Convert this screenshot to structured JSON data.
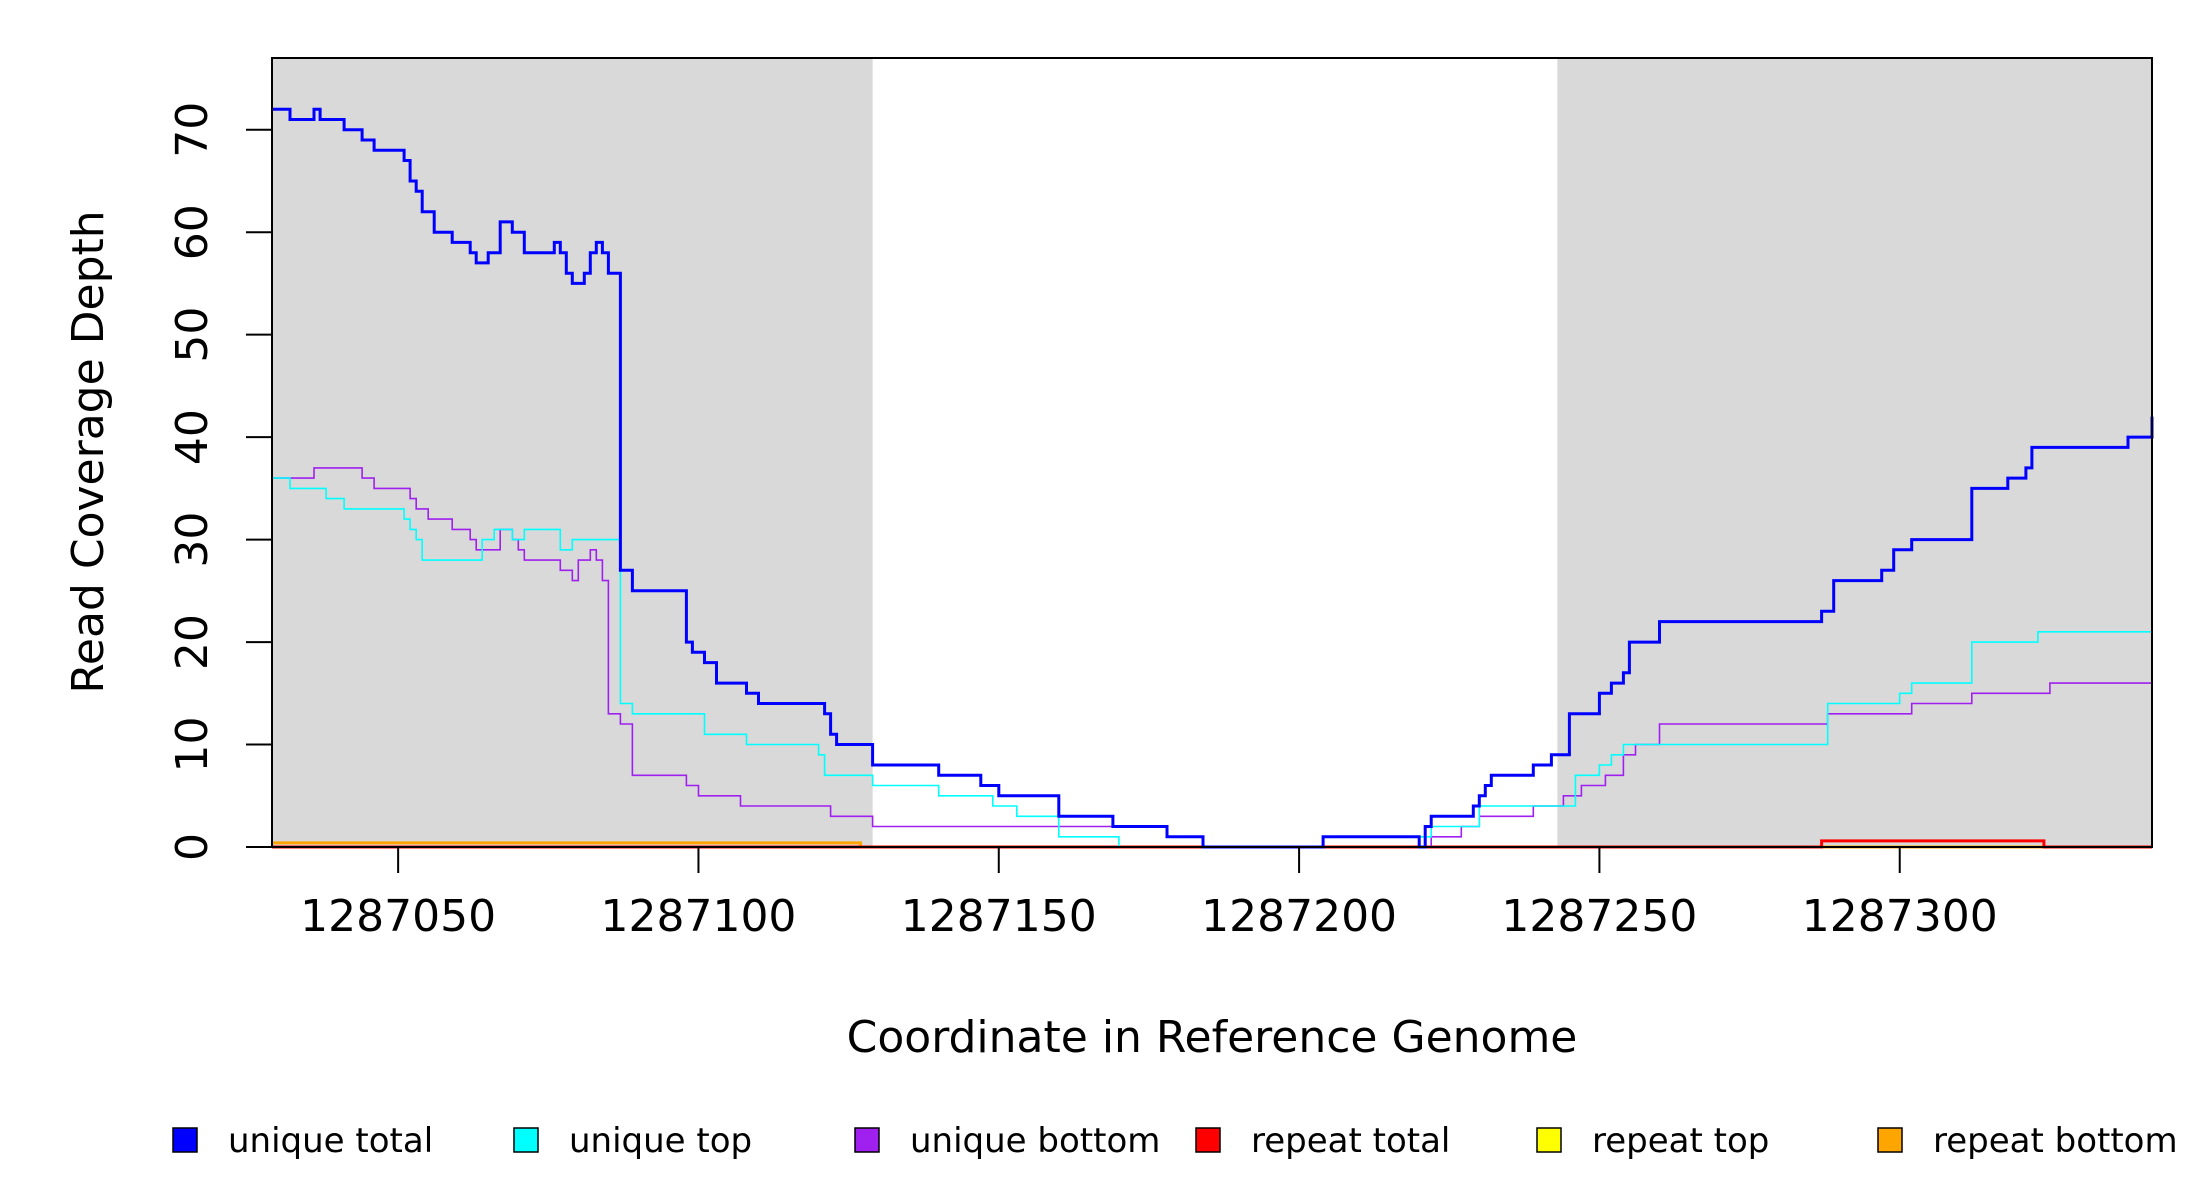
{
  "chart_data": {
    "type": "line",
    "line_style": "step",
    "title": "",
    "xlabel": "Coordinate in Reference Genome",
    "ylabel": "Read Coverage Depth",
    "xlim": [
      1287029,
      1287342
    ],
    "ylim": [
      0,
      77
    ],
    "xticks": [
      1287050,
      1287100,
      1287150,
      1287200,
      1287250,
      1287300
    ],
    "yticks": [
      0,
      10,
      20,
      30,
      40,
      50,
      60,
      70
    ],
    "shaded_regions": [
      {
        "x_start": 1287029,
        "x_end": 1287129,
        "color": "#d9d9d9"
      },
      {
        "x_start": 1287243,
        "x_end": 1287342,
        "color": "#d9d9d9"
      }
    ],
    "legend_placement": "bottom",
    "series": [
      {
        "name": "unique total",
        "color": "#0000ff",
        "width": 3,
        "x": [
          1287029,
          1287032,
          1287036,
          1287037,
          1287041,
          1287044,
          1287046,
          1287051,
          1287052,
          1287053,
          1287054,
          1287056,
          1287059,
          1287062,
          1287063,
          1287065,
          1287067,
          1287069,
          1287071,
          1287076,
          1287077,
          1287078,
          1287079,
          1287081,
          1287082,
          1287083,
          1287084,
          1287085,
          1287087,
          1287089,
          1287098,
          1287099,
          1287101,
          1287103,
          1287108,
          1287110,
          1287121,
          1287122,
          1287123,
          1287129,
          1287140,
          1287147,
          1287150,
          1287160,
          1287169,
          1287178,
          1287184,
          1287204,
          1287220,
          1287221,
          1287222,
          1287223,
          1287229,
          1287230,
          1287231,
          1287232,
          1287234,
          1287239,
          1287242,
          1287245,
          1287250,
          1287252,
          1287254,
          1287255,
          1287256,
          1287260,
          1287271,
          1287280,
          1287287,
          1287289,
          1287297,
          1287299,
          1287302,
          1287312,
          1287318,
          1287320,
          1287321,
          1287322,
          1287338,
          1287342
        ],
        "y": [
          72,
          71,
          72,
          71,
          70,
          69,
          68,
          67,
          65,
          64,
          62,
          60,
          59,
          58,
          57,
          58,
          61,
          60,
          58,
          59,
          58,
          56,
          55,
          56,
          58,
          59,
          58,
          56,
          27,
          25,
          20,
          19,
          18,
          16,
          15,
          14,
          13,
          11,
          10,
          8,
          7,
          6,
          5,
          3,
          2,
          1,
          0,
          1,
          0,
          2,
          3,
          3,
          4,
          5,
          6,
          7,
          7,
          8,
          9,
          13,
          15,
          16,
          17,
          20,
          20,
          22,
          22,
          22,
          23,
          26,
          27,
          29,
          30,
          35,
          36,
          36,
          37,
          39,
          40,
          42
        ]
      },
      {
        "name": "unique top",
        "color": "#00ffff",
        "width": 1.6,
        "x": [
          1287029,
          1287032,
          1287038,
          1287041,
          1287051,
          1287052,
          1287053,
          1287054,
          1287056,
          1287064,
          1287066,
          1287069,
          1287071,
          1287075,
          1287077,
          1287079,
          1287085,
          1287087,
          1287089,
          1287101,
          1287108,
          1287120,
          1287121,
          1287129,
          1287140,
          1287149,
          1287153,
          1287160,
          1287170,
          1287178,
          1287183,
          1287204,
          1287220,
          1287222,
          1287227,
          1287230,
          1287243,
          1287246,
          1287250,
          1287252,
          1287254,
          1287256,
          1287258,
          1287286,
          1287288,
          1287300,
          1287302,
          1287312,
          1287323,
          1287342
        ],
        "y": [
          36,
          35,
          34,
          33,
          32,
          31,
          30,
          28,
          28,
          30,
          31,
          30,
          31,
          31,
          29,
          30,
          30,
          14,
          13,
          11,
          10,
          9,
          7,
          6,
          5,
          4,
          3,
          1,
          0,
          0,
          0,
          1,
          1,
          2,
          2,
          4,
          4,
          7,
          8,
          9,
          10,
          10,
          10,
          10,
          14,
          15,
          16,
          20,
          21,
          23
        ]
      },
      {
        "name": "unique bottom",
        "color": "#a020f0",
        "width": 1.6,
        "x": [
          1287029,
          1287036,
          1287044,
          1287046,
          1287052,
          1287053,
          1287055,
          1287059,
          1287062,
          1287063,
          1287067,
          1287069,
          1287070,
          1287071,
          1287073,
          1287077,
          1287079,
          1287080,
          1287082,
          1287083,
          1287084,
          1287085,
          1287087,
          1287089,
          1287098,
          1287100,
          1287107,
          1287122,
          1287129,
          1287170,
          1287178,
          1287184,
          1287204,
          1287222,
          1287227,
          1287230,
          1287239,
          1287242,
          1287244,
          1287247,
          1287251,
          1287254,
          1287256,
          1287260,
          1287286,
          1287288,
          1287300,
          1287302,
          1287312,
          1287322,
          1287325,
          1287342
        ],
        "y": [
          36,
          37,
          36,
          35,
          34,
          33,
          32,
          31,
          30,
          29,
          31,
          30,
          29,
          28,
          28,
          27,
          26,
          28,
          29,
          28,
          26,
          13,
          12,
          7,
          6,
          5,
          4,
          3,
          2,
          2,
          1,
          0,
          0,
          1,
          2,
          3,
          4,
          4,
          5,
          6,
          7,
          9,
          10,
          12,
          12,
          13,
          13,
          14,
          15,
          15,
          16,
          17
        ]
      },
      {
        "name": "repeat total",
        "color": "#ff0000",
        "width": 3,
        "x": [
          1287029,
          1287286,
          1287287,
          1287323,
          1287324,
          1287342
        ],
        "y": [
          0,
          0,
          0.6,
          0.6,
          0,
          0
        ]
      },
      {
        "name": "repeat top",
        "color": "#ffff00",
        "width": 1.6,
        "x": [
          1287029,
          1287342
        ],
        "y": [
          0,
          0
        ]
      },
      {
        "name": "repeat bottom",
        "color": "#ffa500",
        "width": 3,
        "x": [
          1287029,
          1287126,
          1287127,
          1287342
        ],
        "y": [
          0.4,
          0.4,
          0,
          0
        ]
      }
    ]
  }
}
